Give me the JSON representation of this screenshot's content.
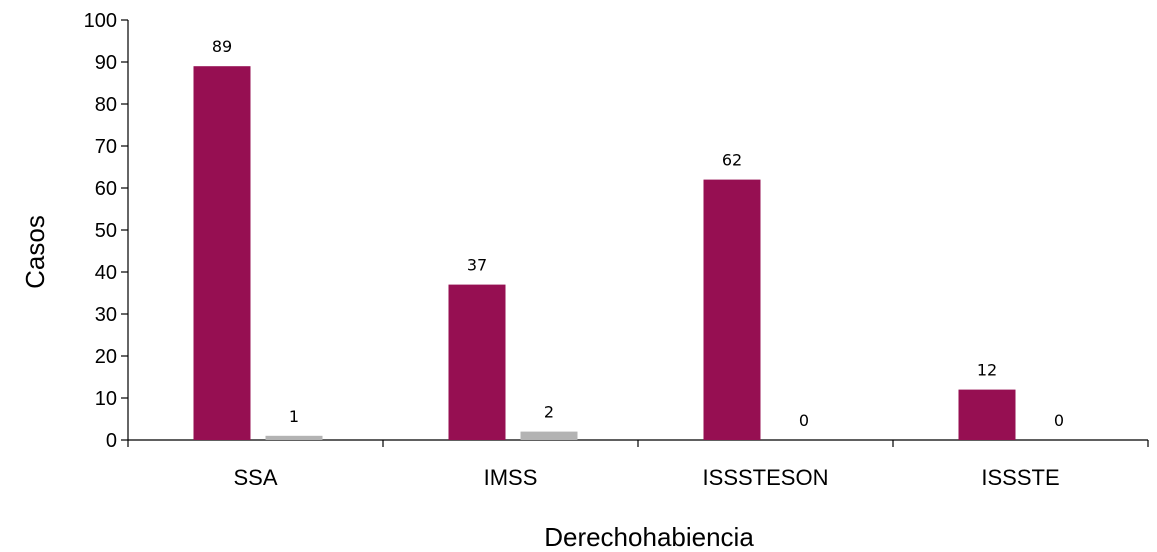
{
  "chart_data": {
    "type": "bar",
    "title": "",
    "xlabel": "Derechohabiencia",
    "ylabel": "Casos",
    "categories": [
      "SSA",
      "IMSS",
      "ISSSTESON",
      "ISSSTE"
    ],
    "series": [
      {
        "values": [
          89,
          37,
          62,
          12
        ],
        "color": "#960f52"
      },
      {
        "values": [
          1,
          2,
          0,
          0
        ],
        "color": "#b3b3b3"
      }
    ],
    "ylim": [
      0,
      100
    ],
    "yticks": [
      "0",
      "10",
      "20",
      "30",
      "40",
      "50",
      "60",
      "70",
      "80",
      "90",
      "100"
    ],
    "grid": false,
    "legend": "none",
    "data_labels": true
  }
}
